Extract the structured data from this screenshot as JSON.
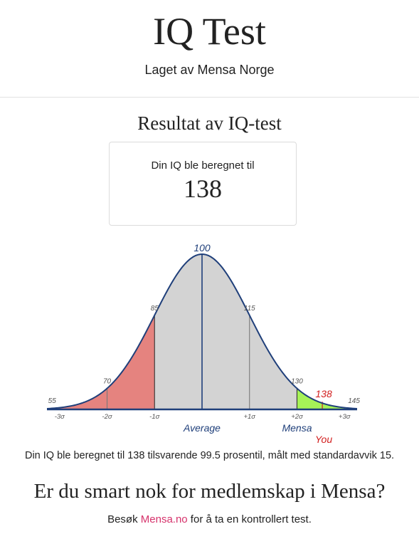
{
  "header": {
    "title": "IQ Test",
    "subtitle": "Laget av Mensa Norge"
  },
  "result": {
    "heading": "Resultat av IQ-test",
    "label": "Din IQ ble beregnet til",
    "value": "138"
  },
  "chart_data": {
    "type": "area",
    "mean": 100,
    "sd": 15,
    "xlim": [
      51,
      149
    ],
    "score": 138,
    "score_label": "138",
    "percentile": 99.5,
    "iq_tick_labels": [
      {
        "value": 55,
        "label": "55"
      },
      {
        "value": 70,
        "label": "70"
      },
      {
        "value": 85,
        "label": "85"
      },
      {
        "value": 100,
        "label": "100"
      },
      {
        "value": 115,
        "label": "115"
      },
      {
        "value": 130,
        "label": "130"
      },
      {
        "value": 145,
        "label": "145"
      }
    ],
    "sigma_ticks": [
      {
        "value": 55,
        "label": "-3σ"
      },
      {
        "value": 70,
        "label": "-2σ"
      },
      {
        "value": 85,
        "label": "-1σ"
      },
      {
        "value": 115,
        "label": "+1σ"
      },
      {
        "value": 130,
        "label": "+2σ"
      },
      {
        "value": 145,
        "label": "+3σ"
      }
    ],
    "regions": [
      {
        "from": 51,
        "to": 85,
        "color": "#e5837f"
      },
      {
        "from": 85,
        "to": 130,
        "color": "#d3d3d3"
      },
      {
        "from": 130,
        "to": 149,
        "color": "#a6f257"
      }
    ],
    "annotations": [
      {
        "text": "Average",
        "value": 100,
        "color": "#1f3f7a"
      },
      {
        "text": "Mensa",
        "value": 130,
        "color": "#1f3f7a"
      },
      {
        "text": "You",
        "value": 138,
        "color": "#d22020"
      }
    ],
    "colors": {
      "curve": "#1f3f7a",
      "score": "#d22020",
      "axis": "#1f3f7a",
      "label": "#555555"
    }
  },
  "summary": "Din IQ ble beregnet til 138 tilsvarende 99.5 prosentil, målt med standardavvik 15.",
  "cta": {
    "heading": "Er du smart nok for medlemskap i Mensa?",
    "prefix": "Besøk ",
    "link": "Mensa.no",
    "suffix": " for å ta en kontrollert test."
  }
}
